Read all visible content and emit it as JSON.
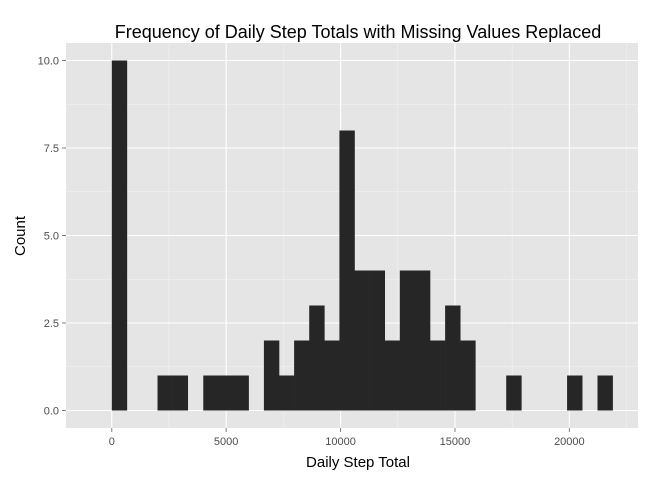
{
  "chart_data": {
    "type": "bar",
    "title": "Frequency of Daily Step Totals with Missing Values Replaced",
    "xlabel": "Daily Step Total",
    "ylabel": "Count",
    "xlim": [
      -2000,
      23000
    ],
    "ylim": [
      -0.5,
      10.5
    ],
    "x_ticks": [
      0,
      5000,
      10000,
      15000,
      20000
    ],
    "x_tick_labels": [
      "0",
      "5000",
      "10000",
      "15000",
      "20000"
    ],
    "y_ticks": [
      0,
      2.5,
      5,
      7.5,
      10
    ],
    "y_tick_labels": [
      "0.0",
      "2.5",
      "5.0",
      "7.5",
      "10.0"
    ],
    "bin_width": 660,
    "bins": [
      {
        "x0": 0,
        "count": 10
      },
      {
        "x0": 2000,
        "count": 1
      },
      {
        "x0": 2660,
        "count": 1
      },
      {
        "x0": 4000,
        "count": 1
      },
      {
        "x0": 4660,
        "count": 1
      },
      {
        "x0": 5320,
        "count": 1
      },
      {
        "x0": 6650,
        "count": 2
      },
      {
        "x0": 7310,
        "count": 1
      },
      {
        "x0": 7970,
        "count": 2
      },
      {
        "x0": 8630,
        "count": 3
      },
      {
        "x0": 9290,
        "count": 2
      },
      {
        "x0": 9950,
        "count": 8
      },
      {
        "x0": 10610,
        "count": 4
      },
      {
        "x0": 11270,
        "count": 4
      },
      {
        "x0": 11930,
        "count": 2
      },
      {
        "x0": 12590,
        "count": 4
      },
      {
        "x0": 13250,
        "count": 4
      },
      {
        "x0": 13910,
        "count": 2
      },
      {
        "x0": 14570,
        "count": 3
      },
      {
        "x0": 15230,
        "count": 2
      },
      {
        "x0": 17240,
        "count": 1
      },
      {
        "x0": 19900,
        "count": 1
      },
      {
        "x0": 21230,
        "count": 1
      }
    ],
    "grid": true
  }
}
